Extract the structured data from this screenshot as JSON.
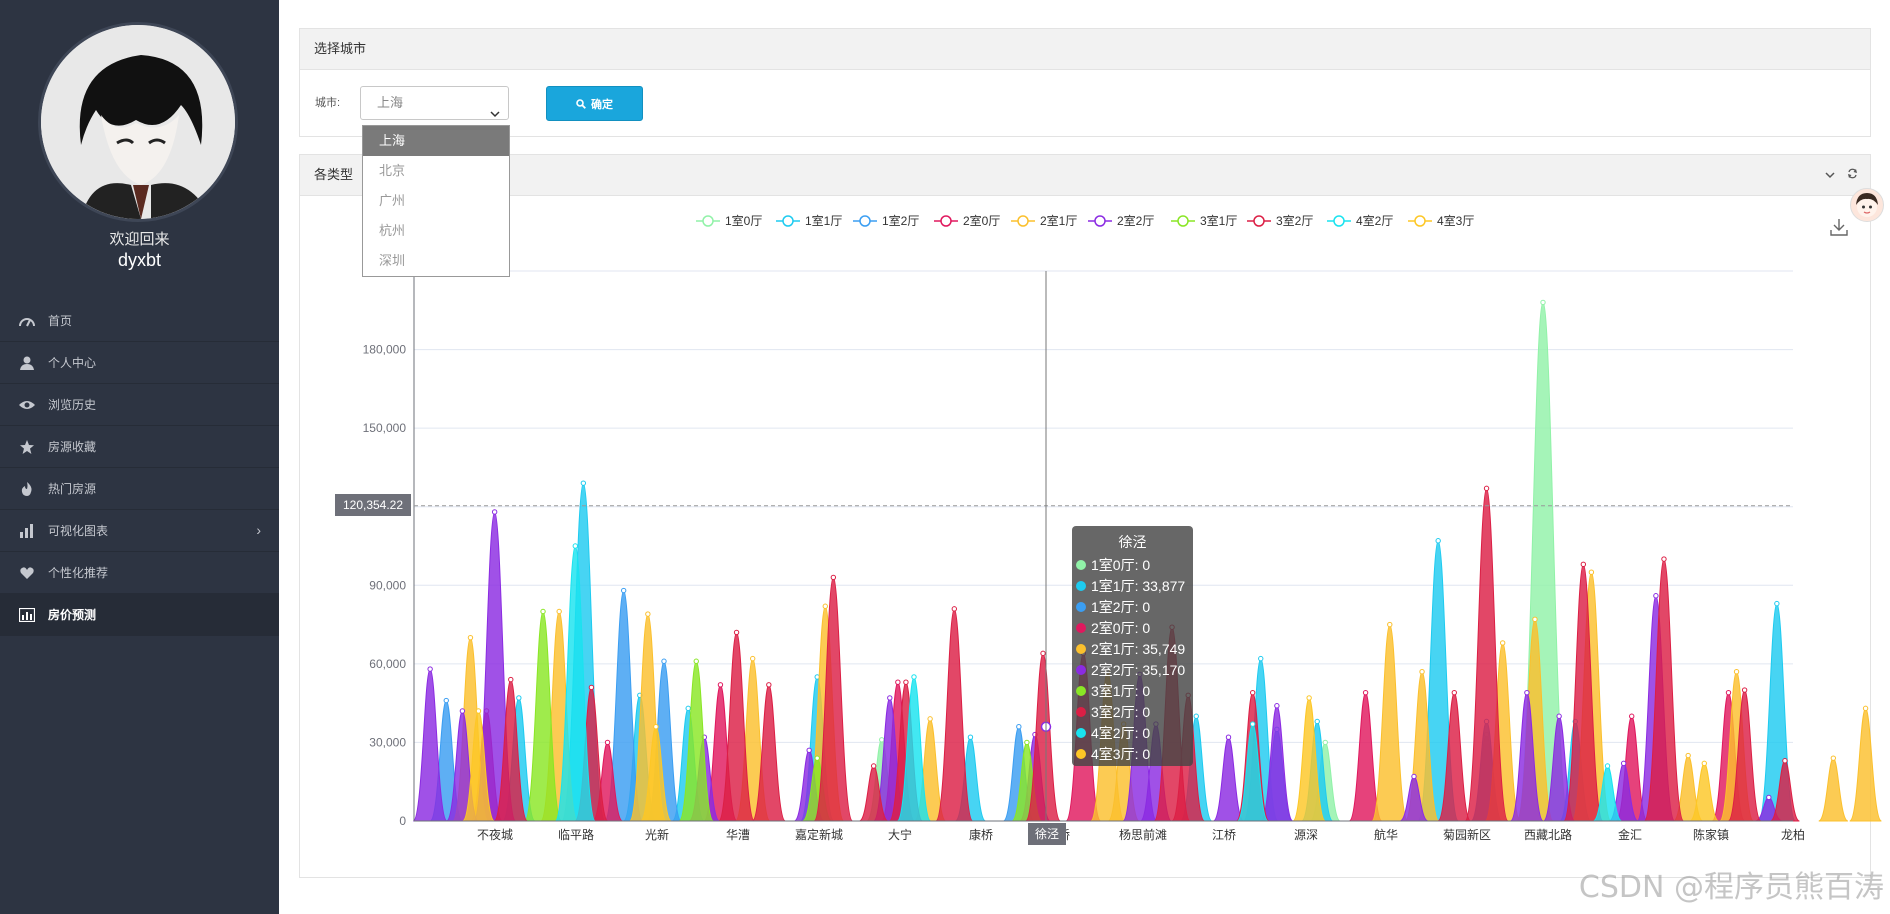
{
  "sidebar": {
    "welcome": "欢迎回来",
    "username": "dyxbt",
    "items": [
      {
        "label": "首页",
        "icon": "dashboard-icon"
      },
      {
        "label": "个人中心",
        "icon": "user-icon"
      },
      {
        "label": "浏览历史",
        "icon": "eye-icon"
      },
      {
        "label": "房源收藏",
        "icon": "star-icon"
      },
      {
        "label": "热门房源",
        "icon": "fire-icon"
      },
      {
        "label": "可视化图表",
        "icon": "bar-chart-icon"
      },
      {
        "label": "个性化推荐",
        "icon": "heart-icon"
      },
      {
        "label": "房价预测",
        "icon": "area-chart-icon"
      }
    ]
  },
  "city_panel": {
    "title": "选择城市",
    "label": "城市:",
    "selected": "上海",
    "button": "确定",
    "options": [
      "上海",
      "北京",
      "广州",
      "杭州",
      "深圳"
    ]
  },
  "chart_panel": {
    "title": "各类型",
    "tooltip": {
      "title": "徐泾",
      "rows": [
        {
          "name": "1室0厅",
          "value": "0",
          "color": "#91f2a8"
        },
        {
          "name": "1室1厅",
          "value": "33,877",
          "color": "#1ecbf0"
        },
        {
          "name": "1室2厅",
          "value": "0",
          "color": "#3b9ef2"
        },
        {
          "name": "2室0厅",
          "value": "0",
          "color": "#e0185e"
        },
        {
          "name": "2室1厅",
          "value": "35,749",
          "color": "#fbc02d"
        },
        {
          "name": "2室2厅",
          "value": "35,170",
          "color": "#8b2be2"
        },
        {
          "name": "3室1厅",
          "value": "0",
          "color": "#8ae625"
        },
        {
          "name": "3室2厅",
          "value": "0",
          "color": "#dc1f45"
        },
        {
          "name": "4室2厅",
          "value": "0",
          "color": "#19e3ef"
        },
        {
          "name": "4室3厅",
          "value": "0",
          "color": "#fdc726"
        }
      ]
    },
    "axis_pointer_value": "120,354.22",
    "x_pointer_label": "徐泾"
  },
  "chart_data": {
    "type": "area",
    "legend_placement": "top",
    "ylim": [
      0,
      210000
    ],
    "yticks": [
      "0",
      "30,000",
      "60,000",
      "90,000",
      "120,000",
      "150,000",
      "180,000"
    ],
    "x_tick_labels": [
      "不夜城",
      "临平路",
      "光新",
      "华漕",
      "嘉定新城",
      "大宁",
      "康桥",
      "徐泾",
      "桥",
      "杨思前滩",
      "江桥",
      "源深",
      "航华",
      "菊园新区",
      "西藏北路",
      "金汇",
      "陈家镇",
      "龙柏"
    ],
    "series": [
      {
        "name": "1室0厅",
        "color": "#91f2a8",
        "peaks": [
          [
            58,
            31000
          ],
          [
            140,
            198000
          ],
          [
            133,
            33000
          ],
          [
            113,
            30000
          ]
        ]
      },
      {
        "name": "1室1厅",
        "color": "#1ecbf0",
        "peaks": [
          [
            13,
            47000
          ],
          [
            21,
            129000
          ],
          [
            28,
            48000
          ],
          [
            34,
            43000
          ],
          [
            50,
            55000
          ],
          [
            69,
            32000
          ],
          [
            105,
            62000
          ],
          [
            97,
            40000
          ],
          [
            112,
            38000
          ],
          [
            127,
            107000
          ],
          [
            144,
            38000
          ],
          [
            169,
            83000
          ]
        ]
      },
      {
        "name": "1室2厅",
        "color": "#3b9ef2",
        "peaks": [
          [
            4,
            46000
          ],
          [
            26,
            88000
          ],
          [
            31,
            61000
          ],
          [
            75,
            36000
          ],
          [
            107,
            35000
          ],
          [
            133,
            38000
          ]
        ]
      },
      {
        "name": "2室0厅",
        "color": "#e0185e",
        "peaks": [
          [
            9,
            42000
          ],
          [
            24,
            30000
          ],
          [
            38,
            52000
          ],
          [
            60,
            53000
          ],
          [
            83,
            64000
          ],
          [
            118,
            49000
          ],
          [
            151,
            40000
          ],
          [
            163,
            49000
          ]
        ]
      },
      {
        "name": "2室1厅",
        "color": "#fbc02d",
        "peaks": [
          [
            7,
            70000
          ],
          [
            18,
            80000
          ],
          [
            29,
            79000
          ],
          [
            42,
            62000
          ],
          [
            51,
            82000
          ],
          [
            64,
            39000
          ],
          [
            86,
            57000
          ],
          [
            88,
            37000
          ],
          [
            121,
            75000
          ],
          [
            125,
            57000
          ],
          [
            135,
            68000
          ],
          [
            139,
            77000
          ],
          [
            146,
            95000
          ],
          [
            158,
            25000
          ],
          [
            164,
            57000
          ],
          [
            176,
            24000
          ],
          [
            180,
            43000
          ]
        ]
      },
      {
        "name": "2室2厅",
        "color": "#8b2be2",
        "peaks": [
          [
            2,
            58000
          ],
          [
            6,
            42000
          ],
          [
            10,
            118000
          ],
          [
            36,
            32000
          ],
          [
            49,
            27000
          ],
          [
            59,
            47000
          ],
          [
            77,
            33000
          ],
          [
            90,
            56000
          ],
          [
            92,
            37000
          ],
          [
            101,
            32000
          ],
          [
            107,
            44000
          ],
          [
            124,
            17000
          ],
          [
            138,
            49000
          ],
          [
            142,
            40000
          ],
          [
            150,
            22000
          ],
          [
            154,
            86000
          ],
          [
            168,
            9000
          ]
        ]
      },
      {
        "name": "3室1厅",
        "color": "#8ae625",
        "peaks": [
          [
            16,
            80000
          ],
          [
            35,
            61000
          ],
          [
            50,
            24000
          ],
          [
            76,
            30000
          ]
        ]
      },
      {
        "name": "3室2厅",
        "color": "#dc1f45",
        "peaks": [
          [
            12,
            54000
          ],
          [
            22,
            51000
          ],
          [
            40,
            72000
          ],
          [
            44,
            52000
          ],
          [
            52,
            93000
          ],
          [
            57,
            21000
          ],
          [
            61,
            53000
          ],
          [
            67,
            81000
          ],
          [
            78,
            64000
          ],
          [
            94,
            74000
          ],
          [
            96,
            48000
          ],
          [
            104,
            49000
          ],
          [
            129,
            49000
          ],
          [
            133,
            127000
          ],
          [
            145,
            98000
          ],
          [
            155,
            100000
          ],
          [
            165,
            50000
          ],
          [
            170,
            23000
          ]
        ]
      },
      {
        "name": "4室2厅",
        "color": "#19e3ef",
        "peaks": [
          [
            20,
            105000
          ],
          [
            62,
            55000
          ],
          [
            104,
            37000
          ],
          [
            148,
            21000
          ]
        ]
      },
      {
        "name": "4室3厅",
        "color": "#fdc726",
        "peaks": [
          [
            8,
            42000
          ],
          [
            30,
            36000
          ],
          [
            111,
            47000
          ],
          [
            160,
            22000
          ]
        ]
      }
    ]
  }
}
